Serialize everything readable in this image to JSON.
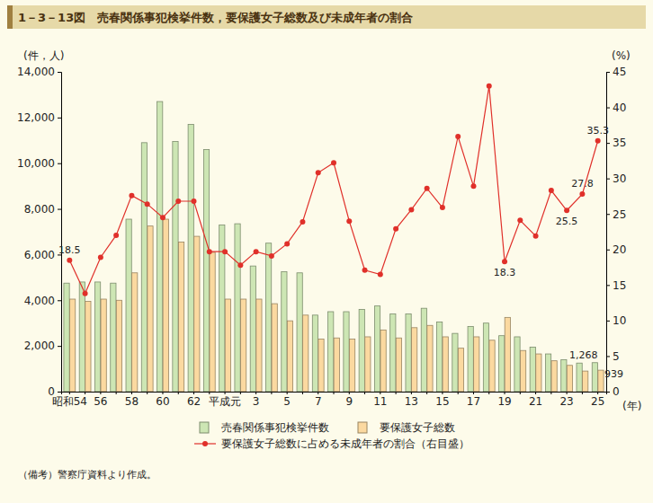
{
  "chart_data": {
    "type": "bar",
    "title": "1－3－13図　売春関係事犯検挙件数，要保護女子総数及び未成年者の割合",
    "y_label": "(件，人)",
    "y2_label": "(%)",
    "x_label": "(年)",
    "note": "（備考）警察庁資料より作成。",
    "categories": [
      "昭和54",
      null,
      "56",
      null,
      "58",
      null,
      "60",
      null,
      "62",
      null,
      "平成元",
      null,
      "3",
      null,
      "5",
      null,
      "7",
      null,
      "9",
      null,
      "11",
      null,
      "13",
      null,
      "15",
      null,
      "17",
      null,
      "19",
      null,
      "21",
      null,
      "23",
      null,
      "25"
    ],
    "ylim": [
      0,
      14000
    ],
    "yticks": [
      0,
      {
        "value": 2000,
        "label": "2,000"
      },
      {
        "value": 4000,
        "label": "4,000"
      },
      {
        "value": 6000,
        "label": "6,000"
      },
      {
        "value": 8000,
        "label": "8,000"
      },
      {
        "value": 10000,
        "label": "10,000"
      },
      {
        "value": 12000,
        "label": "12,000"
      },
      {
        "value": 14000,
        "label": "14,000"
      }
    ],
    "y2lim": [
      0,
      45
    ],
    "y2ticks": [
      0,
      5,
      10,
      15,
      20,
      25,
      30,
      35,
      40,
      45
    ],
    "grid": false,
    "series": [
      {
        "name": "売春関係事犯検挙件数",
        "type": "bar",
        "color": "#cde6b4",
        "values": [
          4750,
          4800,
          4800,
          4750,
          7550,
          10900,
          12700,
          10950,
          11700,
          10600,
          7300,
          7350,
          5500,
          6500,
          5250,
          5200,
          3350,
          3500,
          3500,
          3600,
          3750,
          3400,
          3400,
          3650,
          3050,
          2550,
          2850,
          3000,
          2450,
          2400,
          1950,
          1650,
          1400,
          1250,
          1268
        ],
        "value_labels": [
          null,
          null,
          null,
          null,
          null,
          null,
          null,
          null,
          null,
          null,
          null,
          null,
          null,
          null,
          null,
          null,
          null,
          null,
          null,
          null,
          null,
          null,
          null,
          null,
          null,
          null,
          null,
          null,
          null,
          null,
          null,
          null,
          null,
          null,
          "1,268"
        ]
      },
      {
        "name": "要保護女子総数",
        "type": "bar",
        "color": "#fbd9a0",
        "values": [
          4050,
          3950,
          4050,
          4000,
          5200,
          7250,
          7550,
          6550,
          6800,
          6100,
          4050,
          4050,
          4050,
          3850,
          3100,
          3350,
          2300,
          2350,
          2300,
          2400,
          2700,
          2350,
          2800,
          2900,
          2400,
          1900,
          2400,
          2250,
          3250,
          1800,
          1650,
          1350,
          1150,
          900,
          939
        ],
        "value_labels": [
          null,
          null,
          null,
          null,
          null,
          null,
          null,
          null,
          null,
          null,
          null,
          null,
          null,
          null,
          null,
          null,
          null,
          null,
          null,
          null,
          null,
          null,
          null,
          null,
          null,
          null,
          null,
          null,
          null,
          null,
          null,
          null,
          null,
          null,
          "939"
        ]
      },
      {
        "name": "要保護女子総数に占める未成年者の割合（右目盛）",
        "type": "line",
        "axis": "y2",
        "color": "#e0302a",
        "marker": "circle",
        "values": [
          18.5,
          13.8,
          18.9,
          22.0,
          27.6,
          26.4,
          24.5,
          26.8,
          26.8,
          19.7,
          19.7,
          17.8,
          19.7,
          19.1,
          20.8,
          23.9,
          30.8,
          32.2,
          24.0,
          17.1,
          16.5,
          22.9,
          25.6,
          28.6,
          25.9,
          35.9,
          28.9,
          43.0,
          18.3,
          24.1,
          21.9,
          28.3,
          25.5,
          27.8,
          35.3
        ],
        "value_labels": [
          "18.5",
          null,
          null,
          null,
          null,
          null,
          null,
          null,
          null,
          null,
          null,
          null,
          null,
          null,
          null,
          null,
          null,
          null,
          null,
          null,
          null,
          null,
          null,
          null,
          null,
          null,
          null,
          null,
          "18.3",
          null,
          null,
          null,
          "25.5",
          "27.8",
          "35.3"
        ]
      }
    ]
  }
}
